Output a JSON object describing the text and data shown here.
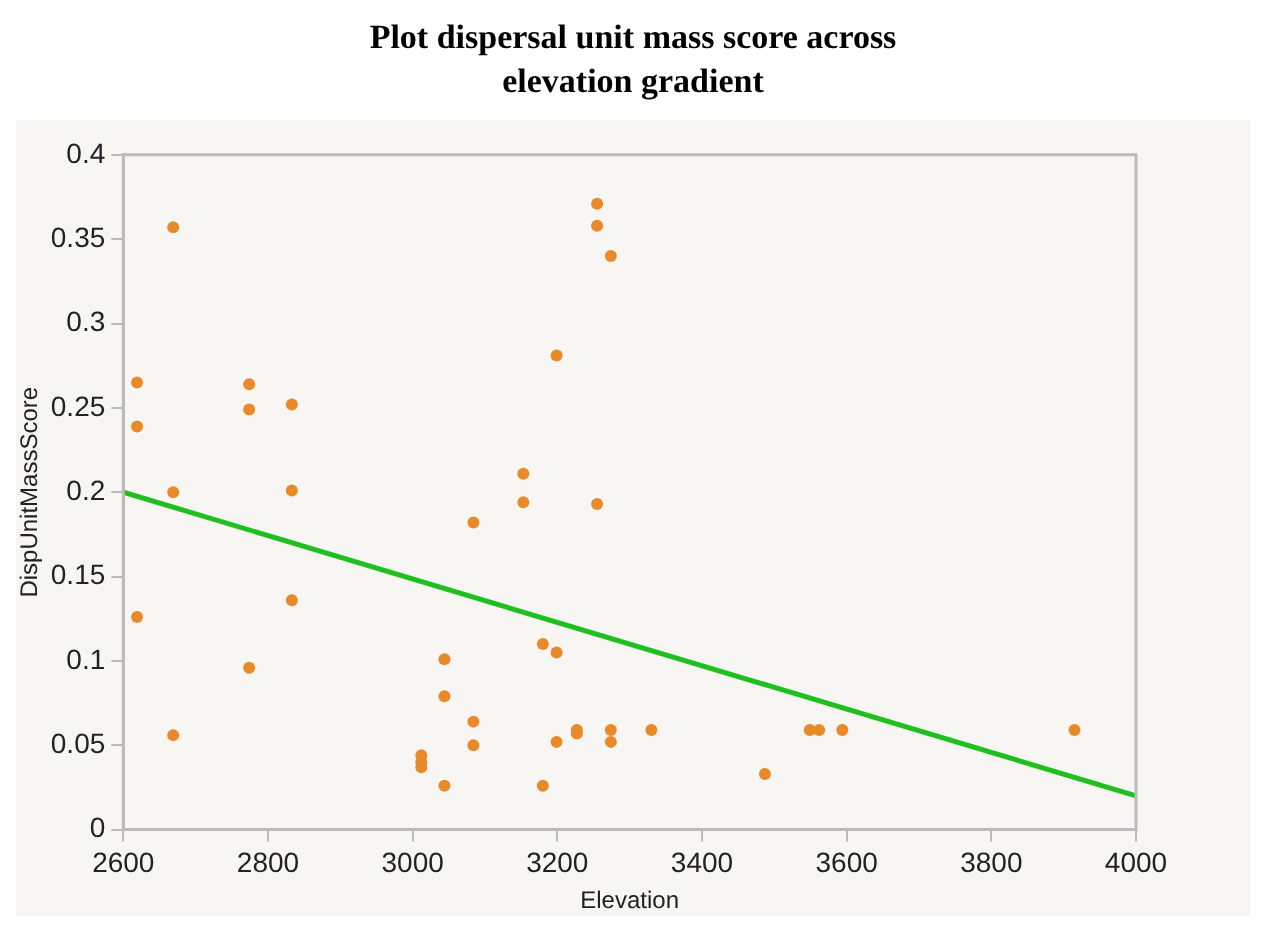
{
  "chart_data": {
    "type": "scatter",
    "title": "Plot dispersal unit mass score across elevation gradient",
    "xlabel": "Elevation",
    "ylabel": "DispUnitMassScore",
    "xlim": [
      2600,
      4000
    ],
    "xticks": [
      2600,
      2800,
      3000,
      3200,
      3400,
      3600,
      3800,
      4000
    ],
    "ylim": [
      0,
      0.4
    ],
    "yticks": [
      0,
      0.05,
      0.1,
      0.15,
      0.2,
      0.25,
      0.3,
      0.35,
      0.4
    ],
    "grid": false,
    "legend": false,
    "marker": "circle",
    "series": [
      {
        "color": "#e8892a",
        "x": [
          2619,
          2619,
          2619,
          2669,
          2669,
          2669,
          2774,
          2774,
          2774,
          2833,
          2833,
          2833,
          3012,
          3012,
          3012,
          3044,
          3044,
          3044,
          3084,
          3084,
          3084,
          3153,
          3153,
          3180,
          3180,
          3199,
          3199,
          3199,
          3227,
          3227,
          3255,
          3255,
          3255,
          3274,
          3274,
          3274,
          3330,
          3487,
          3549,
          3562,
          3594,
          3915
        ],
        "values": [
          0.265,
          0.239,
          0.126,
          0.357,
          0.2,
          0.056,
          0.264,
          0.249,
          0.096,
          0.252,
          0.201,
          0.136,
          0.044,
          0.04,
          0.037,
          0.101,
          0.079,
          0.026,
          0.182,
          0.064,
          0.05,
          0.211,
          0.194,
          0.11,
          0.026,
          0.281,
          0.105,
          0.052,
          0.059,
          0.057,
          0.371,
          0.358,
          0.193,
          0.34,
          0.059,
          0.052,
          0.059,
          0.033,
          0.059,
          0.059,
          0.059,
          0.059
        ]
      },
      {
        "type": "line",
        "color": "#1fbf1f",
        "x": [
          2600,
          4000
        ],
        "values": [
          0.2,
          0.02
        ],
        "marker": "none"
      }
    ]
  }
}
